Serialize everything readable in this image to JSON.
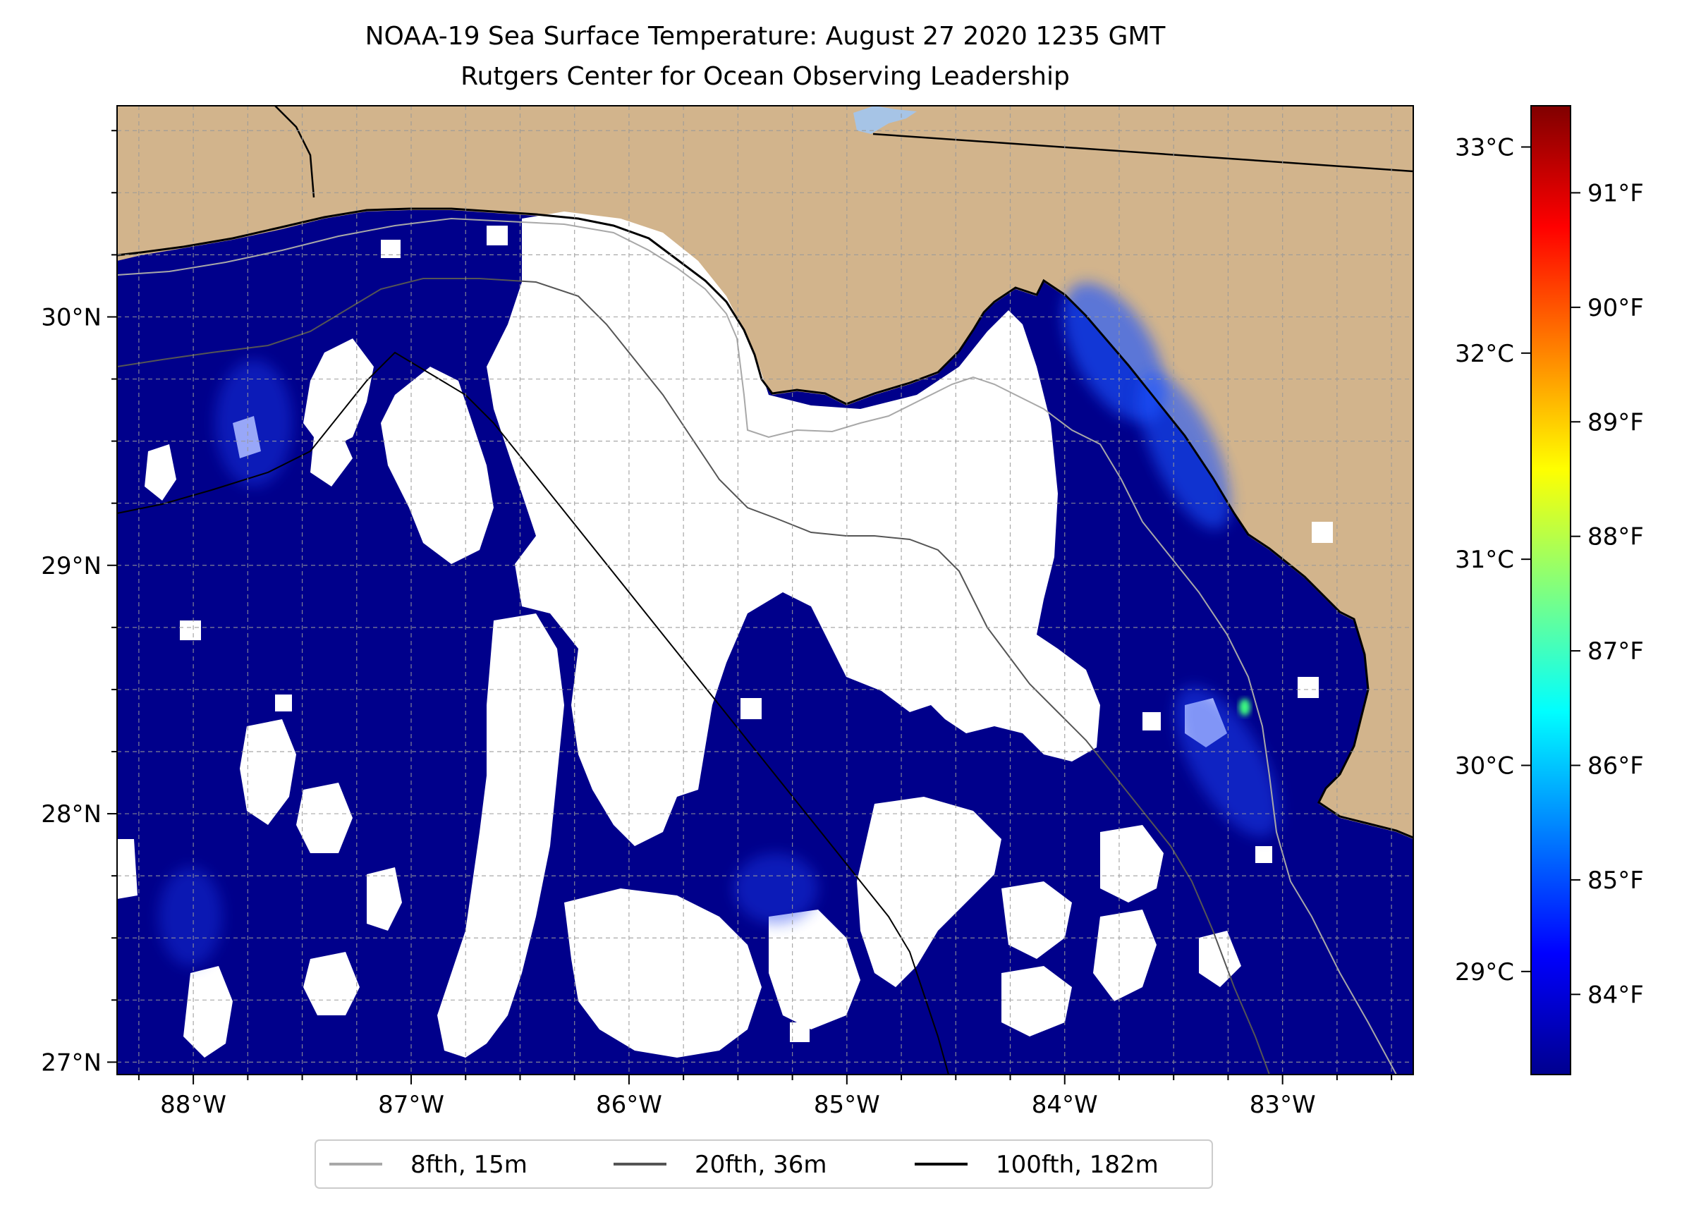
{
  "title": {
    "line1": "NOAA-19 Sea Surface Temperature: August 27 2020 1235 GMT",
    "line2": "Rutgers Center for Ocean Observing Leadership"
  },
  "map": {
    "lon_range": [
      -88.35,
      -82.4
    ],
    "lat_range": [
      26.95,
      30.85
    ],
    "lon_ticks": [
      {
        "value": -88,
        "label": "88°W"
      },
      {
        "value": -87,
        "label": "87°W"
      },
      {
        "value": -86,
        "label": "86°W"
      },
      {
        "value": -85,
        "label": "85°W"
      },
      {
        "value": -84,
        "label": "84°W"
      },
      {
        "value": -83,
        "label": "83°W"
      }
    ],
    "lat_ticks": [
      {
        "value": 27,
        "label": "27°N"
      },
      {
        "value": 28,
        "label": "28°N"
      },
      {
        "value": 29,
        "label": "29°N"
      },
      {
        "value": 30,
        "label": "30°N"
      }
    ],
    "colors": {
      "land": "#d2b48c",
      "cold_water": "#00008b",
      "no_data": "#ffffff",
      "lake": "#a6c4e6"
    },
    "gridlines": true
  },
  "legend": {
    "placement": "bottom-center",
    "entries": [
      {
        "label": "8fth, 15m",
        "color": "#a8a8a8"
      },
      {
        "label": "20fth, 36m",
        "color": "#555555"
      },
      {
        "label": "100fth, 182m",
        "color": "#000000"
      }
    ]
  },
  "colorbar": {
    "colormap": "jet",
    "celsius_range": [
      28.5,
      33.2
    ],
    "celsius_ticks": [
      {
        "value": 29,
        "label": "29°C"
      },
      {
        "value": 30,
        "label": "30°C"
      },
      {
        "value": 31,
        "label": "31°C"
      },
      {
        "value": 32,
        "label": "32°C"
      },
      {
        "value": 33,
        "label": "33°C"
      }
    ],
    "fahrenheit_ticks": [
      {
        "value": 84,
        "label": "84°F"
      },
      {
        "value": 85,
        "label": "85°F"
      },
      {
        "value": 86,
        "label": "86°F"
      },
      {
        "value": 87,
        "label": "87°F"
      },
      {
        "value": 88,
        "label": "88°F"
      },
      {
        "value": 89,
        "label": "89°F"
      },
      {
        "value": 90,
        "label": "90°F"
      },
      {
        "value": 91,
        "label": "91°F"
      }
    ]
  }
}
